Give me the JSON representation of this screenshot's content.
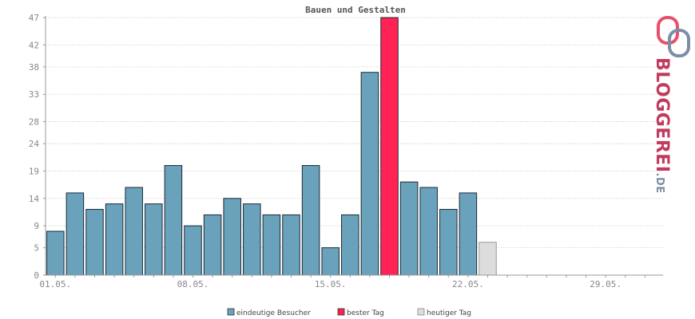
{
  "chart_data": {
    "type": "bar",
    "title": "Bauen und Gestalten",
    "xlabel": "",
    "ylabel": "",
    "ylim": [
      0,
      47
    ],
    "y_ticks": [
      "0",
      "5",
      "9",
      "14",
      "19",
      "24",
      "28",
      "33",
      "38",
      "42",
      "47"
    ],
    "x_ticks": [
      {
        "label": "01.05.",
        "day": 1
      },
      {
        "label": "08.05.",
        "day": 8
      },
      {
        "label": "15.05.",
        "day": 15
      },
      {
        "label": "22.05.",
        "day": 22
      },
      {
        "label": "29.05.",
        "day": 29
      }
    ],
    "grid": true,
    "legend_position": "bottom",
    "days": [
      1,
      2,
      3,
      4,
      5,
      6,
      7,
      8,
      9,
      10,
      11,
      12,
      13,
      14,
      15,
      16,
      17,
      18,
      19,
      20,
      21,
      22,
      23,
      24,
      25,
      26,
      27,
      28,
      29,
      30,
      31
    ],
    "series": [
      {
        "name": "eindeutige Besucher",
        "color": "#6aa2bb",
        "values": [
          8,
          15,
          12,
          13,
          16,
          13,
          20,
          9,
          11,
          14,
          13,
          11,
          11,
          20,
          5,
          11,
          37,
          47,
          17,
          16,
          12,
          15,
          6,
          null,
          null,
          null,
          null,
          null,
          null,
          null,
          null
        ]
      }
    ],
    "best_day": {
      "name": "bester Tag",
      "day": 18,
      "color": "#ff2255"
    },
    "today": {
      "name": "heutiger Tag",
      "day": 23,
      "color": "#dddddd"
    }
  },
  "logo": {
    "text_main": "BLOGGEREI",
    "text_suffix": ".DE"
  }
}
